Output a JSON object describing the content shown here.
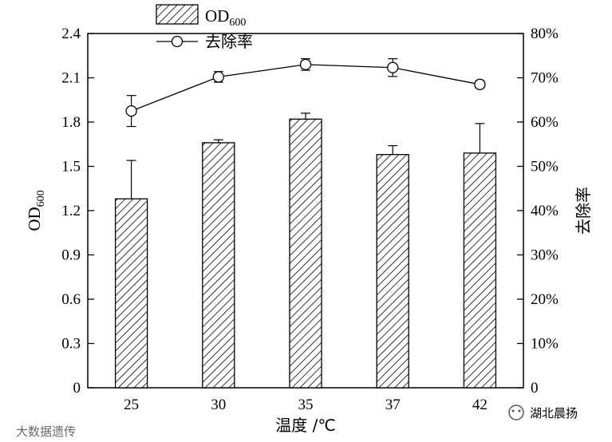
{
  "chart_data": {
    "type": "bar+line",
    "categories": [
      "25",
      "30",
      "35",
      "37",
      "42"
    ],
    "xlabel": "温度 /℃",
    "ylabel_left": {
      "main": "OD",
      "sub": "600"
    },
    "ylabel_right": "去除率",
    "ylim_left": [
      0,
      2.4
    ],
    "ylim_right": [
      0,
      80
    ],
    "yticks_left": [
      "0",
      "0.3",
      "0.6",
      "0.9",
      "1.2",
      "1.5",
      "1.8",
      "2.1",
      "2.4"
    ],
    "yticks_right": [
      "0",
      "10%",
      "20%",
      "30%",
      "40%",
      "50%",
      "60%",
      "70%",
      "80%"
    ],
    "series": [
      {
        "name": {
          "main": "OD",
          "sub": "600"
        },
        "kind": "bar",
        "pattern": "diagonal-hatch",
        "values": [
          1.28,
          1.66,
          1.82,
          1.58,
          1.59
        ],
        "errors": [
          0.26,
          0.02,
          0.04,
          0.06,
          0.2
        ]
      },
      {
        "name": "去除率",
        "kind": "line",
        "marker": "open-circle",
        "values": [
          62.5,
          70.2,
          73.0,
          72.3,
          68.5
        ],
        "errors": [
          3.5,
          1.2,
          1.3,
          2.0,
          0.8
        ]
      }
    ],
    "legend": "top-left",
    "grid": false
  },
  "watermarks": {
    "left": "大数据遗传",
    "right": "湖北晨扬"
  }
}
